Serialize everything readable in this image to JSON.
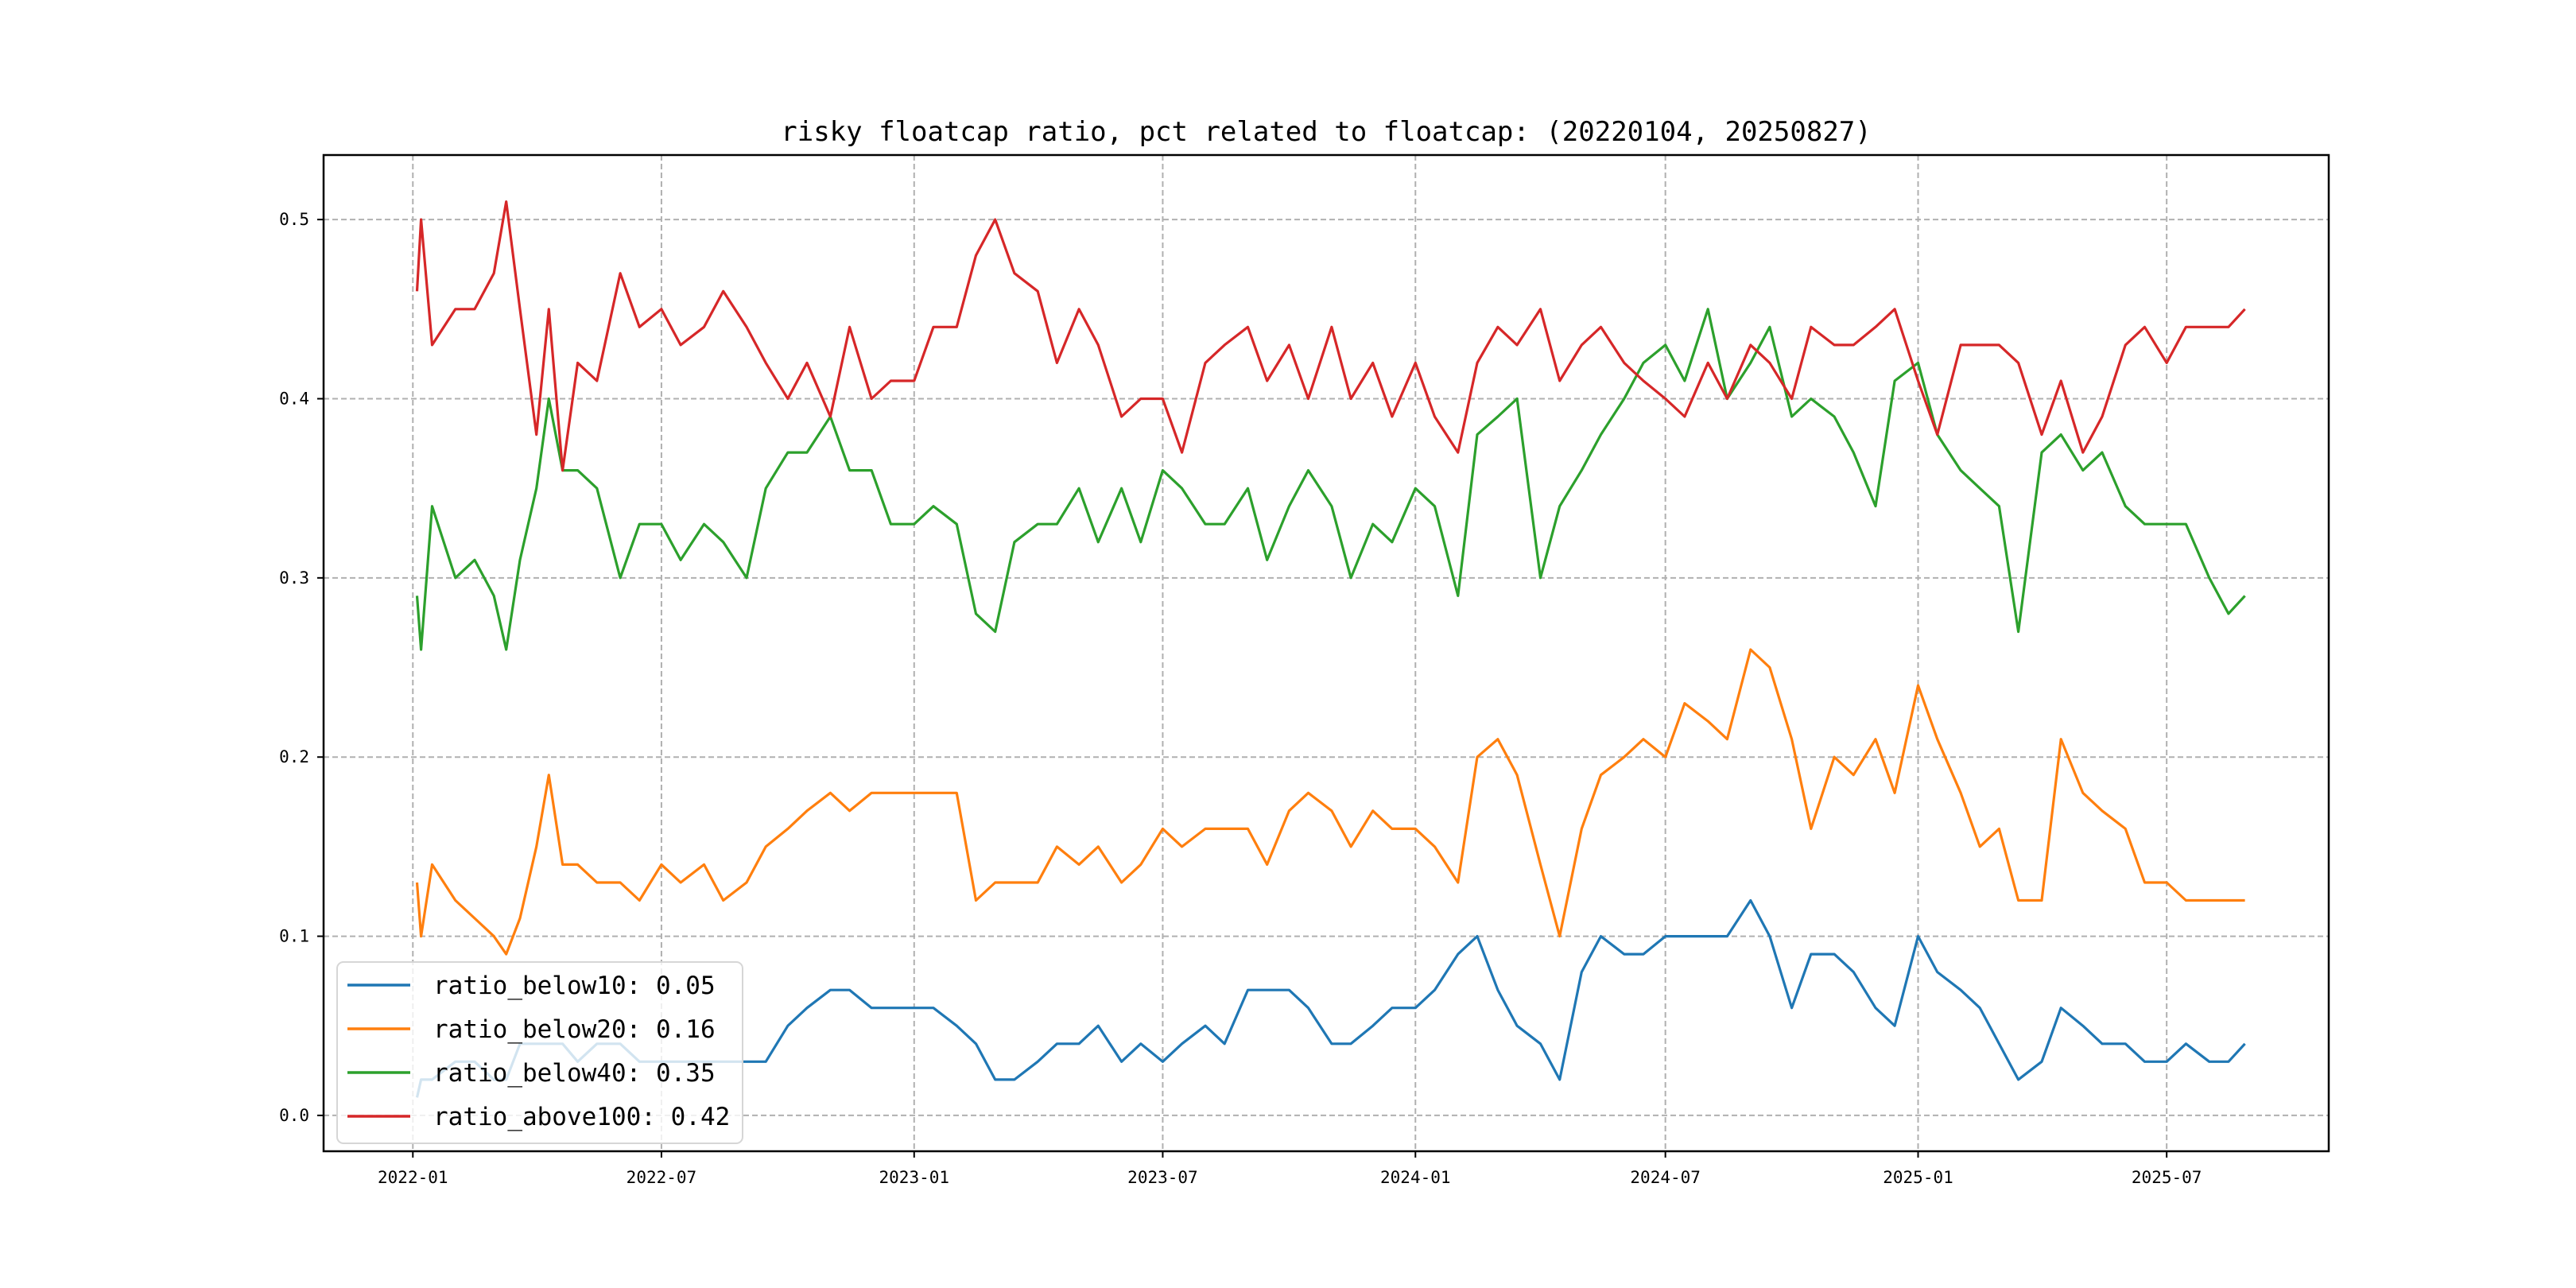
{
  "chart_data": {
    "type": "line",
    "title": "risky floatcap ratio, pct related to floatcap: (20220104, 20250827)",
    "xlabel": "",
    "ylabel": "",
    "ylim": [
      -0.02,
      0.536
    ],
    "xlim": [
      "2021-10-28",
      "2025-10-27"
    ],
    "grid": true,
    "legend_position": "lower-left",
    "x_ticks": [
      "2022-01",
      "2022-07",
      "2023-01",
      "2023-07",
      "2024-01",
      "2024-07",
      "2025-01",
      "2025-07"
    ],
    "y_ticks": [
      "0.0",
      "0.1",
      "0.2",
      "0.3",
      "0.4",
      "0.5"
    ],
    "y_tick_values": [
      0,
      0.1,
      0.2,
      0.3,
      0.4,
      0.5
    ],
    "x": [
      "2022-01-04",
      "2022-01-07",
      "2022-01-15",
      "2022-02-01",
      "2022-02-15",
      "2022-03-01",
      "2022-03-10",
      "2022-03-20",
      "2022-04-01",
      "2022-04-10",
      "2022-04-20",
      "2022-05-01",
      "2022-05-15",
      "2022-06-01",
      "2022-06-15",
      "2022-07-01",
      "2022-07-15",
      "2022-08-01",
      "2022-08-15",
      "2022-09-01",
      "2022-09-15",
      "2022-10-01",
      "2022-10-15",
      "2022-11-01",
      "2022-11-15",
      "2022-12-01",
      "2022-12-15",
      "2023-01-01",
      "2023-01-15",
      "2023-02-01",
      "2023-02-15",
      "2023-03-01",
      "2023-03-15",
      "2023-04-01",
      "2023-04-15",
      "2023-05-01",
      "2023-05-15",
      "2023-06-01",
      "2023-06-15",
      "2023-07-01",
      "2023-07-15",
      "2023-08-01",
      "2023-08-15",
      "2023-09-01",
      "2023-09-15",
      "2023-10-01",
      "2023-10-15",
      "2023-11-01",
      "2023-11-15",
      "2023-12-01",
      "2023-12-15",
      "2024-01-01",
      "2024-01-15",
      "2024-02-01",
      "2024-02-15",
      "2024-03-01",
      "2024-03-15",
      "2024-04-01",
      "2024-04-15",
      "2024-05-01",
      "2024-05-15",
      "2024-06-01",
      "2024-06-15",
      "2024-07-01",
      "2024-07-15",
      "2024-08-01",
      "2024-08-15",
      "2024-09-01",
      "2024-09-15",
      "2024-10-01",
      "2024-10-15",
      "2024-11-01",
      "2024-11-15",
      "2024-12-01",
      "2024-12-15",
      "2025-01-01",
      "2025-01-15",
      "2025-02-01",
      "2025-02-15",
      "2025-03-01",
      "2025-03-15",
      "2025-04-01",
      "2025-04-15",
      "2025-05-01",
      "2025-05-15",
      "2025-06-01",
      "2025-06-15",
      "2025-07-01",
      "2025-07-15",
      "2025-08-01",
      "2025-08-15",
      "2025-08-27"
    ],
    "series": [
      {
        "name": "ratio_below10",
        "legend_label": "ratio_below10: 0.05",
        "color": "#1f77b4",
        "values": [
          0.01,
          0.02,
          0.02,
          0.03,
          0.03,
          0.02,
          0.02,
          0.04,
          0.04,
          0.04,
          0.04,
          0.03,
          0.04,
          0.04,
          0.03,
          0.03,
          0.03,
          0.03,
          0.03,
          0.03,
          0.03,
          0.05,
          0.06,
          0.07,
          0.07,
          0.06,
          0.06,
          0.06,
          0.06,
          0.05,
          0.04,
          0.02,
          0.02,
          0.03,
          0.04,
          0.04,
          0.05,
          0.03,
          0.04,
          0.03,
          0.04,
          0.05,
          0.04,
          0.07,
          0.07,
          0.07,
          0.06,
          0.04,
          0.04,
          0.05,
          0.06,
          0.06,
          0.07,
          0.09,
          0.1,
          0.07,
          0.05,
          0.04,
          0.02,
          0.08,
          0.1,
          0.09,
          0.09,
          0.1,
          0.1,
          0.1,
          0.1,
          0.12,
          0.1,
          0.06,
          0.09,
          0.09,
          0.08,
          0.06,
          0.05,
          0.1,
          0.08,
          0.07,
          0.06,
          0.04,
          0.02,
          0.03,
          0.06,
          0.05,
          0.04,
          0.04,
          0.03,
          0.03,
          0.04,
          0.03,
          0.03,
          0.04
        ]
      },
      {
        "name": "ratio_below20",
        "legend_label": "ratio_below20: 0.16",
        "color": "#ff7f0e",
        "values": [
          0.13,
          0.1,
          0.14,
          0.12,
          0.11,
          0.1,
          0.09,
          0.11,
          0.15,
          0.19,
          0.14,
          0.14,
          0.13,
          0.13,
          0.12,
          0.14,
          0.13,
          0.14,
          0.12,
          0.13,
          0.15,
          0.16,
          0.17,
          0.18,
          0.17,
          0.18,
          0.18,
          0.18,
          0.18,
          0.18,
          0.12,
          0.13,
          0.13,
          0.13,
          0.15,
          0.14,
          0.15,
          0.13,
          0.14,
          0.16,
          0.15,
          0.16,
          0.16,
          0.16,
          0.14,
          0.17,
          0.18,
          0.17,
          0.15,
          0.17,
          0.16,
          0.16,
          0.15,
          0.13,
          0.2,
          0.21,
          0.19,
          0.14,
          0.1,
          0.16,
          0.19,
          0.2,
          0.21,
          0.2,
          0.23,
          0.22,
          0.21,
          0.26,
          0.25,
          0.21,
          0.16,
          0.2,
          0.19,
          0.21,
          0.18,
          0.24,
          0.21,
          0.18,
          0.15,
          0.16,
          0.12,
          0.12,
          0.21,
          0.18,
          0.17,
          0.16,
          0.13,
          0.13,
          0.12,
          0.12,
          0.12,
          0.12
        ]
      },
      {
        "name": "ratio_below40",
        "legend_label": "ratio_below40: 0.35",
        "color": "#2ca02c",
        "values": [
          0.29,
          0.26,
          0.34,
          0.3,
          0.31,
          0.29,
          0.26,
          0.31,
          0.35,
          0.4,
          0.36,
          0.36,
          0.35,
          0.3,
          0.33,
          0.33,
          0.31,
          0.33,
          0.32,
          0.3,
          0.35,
          0.37,
          0.37,
          0.39,
          0.36,
          0.36,
          0.33,
          0.33,
          0.34,
          0.33,
          0.28,
          0.27,
          0.32,
          0.33,
          0.33,
          0.35,
          0.32,
          0.35,
          0.32,
          0.36,
          0.35,
          0.33,
          0.33,
          0.35,
          0.31,
          0.34,
          0.36,
          0.34,
          0.3,
          0.33,
          0.32,
          0.35,
          0.34,
          0.29,
          0.38,
          0.39,
          0.4,
          0.3,
          0.34,
          0.36,
          0.38,
          0.4,
          0.42,
          0.43,
          0.41,
          0.45,
          0.4,
          0.42,
          0.44,
          0.39,
          0.4,
          0.39,
          0.37,
          0.34,
          0.41,
          0.42,
          0.38,
          0.36,
          0.35,
          0.34,
          0.27,
          0.37,
          0.38,
          0.36,
          0.37,
          0.34,
          0.33,
          0.33,
          0.33,
          0.3,
          0.28,
          0.29
        ]
      },
      {
        "name": "ratio_above100",
        "legend_label": "ratio_above100: 0.42",
        "color": "#d62728",
        "values": [
          0.46,
          0.5,
          0.43,
          0.45,
          0.45,
          0.47,
          0.51,
          0.45,
          0.38,
          0.45,
          0.36,
          0.42,
          0.41,
          0.47,
          0.44,
          0.45,
          0.43,
          0.44,
          0.46,
          0.44,
          0.42,
          0.4,
          0.42,
          0.39,
          0.44,
          0.4,
          0.41,
          0.41,
          0.44,
          0.44,
          0.48,
          0.5,
          0.47,
          0.46,
          0.42,
          0.45,
          0.43,
          0.39,
          0.4,
          0.4,
          0.37,
          0.42,
          0.43,
          0.44,
          0.41,
          0.43,
          0.4,
          0.44,
          0.4,
          0.42,
          0.39,
          0.42,
          0.39,
          0.37,
          0.42,
          0.44,
          0.43,
          0.45,
          0.41,
          0.43,
          0.44,
          0.42,
          0.41,
          0.4,
          0.39,
          0.42,
          0.4,
          0.43,
          0.42,
          0.4,
          0.44,
          0.43,
          0.43,
          0.44,
          0.45,
          0.41,
          0.38,
          0.43,
          0.43,
          0.43,
          0.42,
          0.38,
          0.41,
          0.37,
          0.39,
          0.43,
          0.44,
          0.42,
          0.44,
          0.44,
          0.44,
          0.45
        ]
      }
    ]
  }
}
